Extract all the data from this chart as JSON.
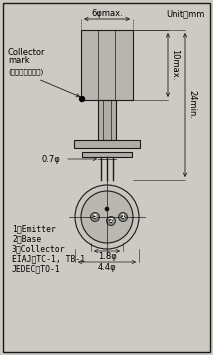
{
  "bg_color": "#cdc9c3",
  "border_color": "#1a1a1a",
  "line_color": "#1a1a1a",
  "body_color": "#b8b4ae",
  "stem_color": "#b0aca6",
  "circle_fill": "#c8c4be",
  "title": "Unit：mm",
  "dim_6phi": "6φmax.",
  "dim_10max": "10max.",
  "dim_24min": "24min.",
  "dim_07phi": "0.7φ",
  "dim_18phi": "1.8φ",
  "dim_44phi": "4.4φ",
  "collector_label1": "Collector",
  "collector_label2": "mark",
  "collector_sub": "(コレクタ側表示)",
  "pin1": "1：Emitter",
  "pin2": "2：Base",
  "pin3": "3：Collector",
  "eiaj": "EIAJ：TC-1, TB-1",
  "jedec": "JEDEC：TO-1",
  "fs": 6.0,
  "fs_label": 5.8,
  "fs_small": 5.0
}
